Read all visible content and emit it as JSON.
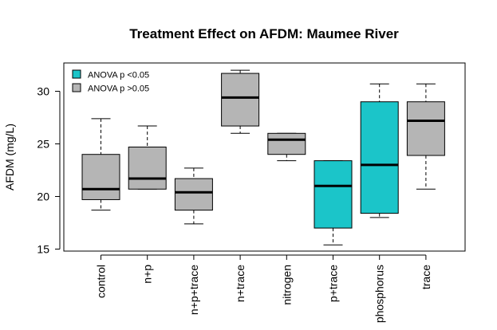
{
  "chart_data": {
    "type": "boxplot",
    "title": "Treatment Effect on AFDM: Maumee River",
    "xlabel": "",
    "ylabel": "AFDM (mg/L)",
    "ylim": [
      15,
      32
    ],
    "yticks": [
      "15",
      "20",
      "25",
      "30"
    ],
    "grid": false,
    "legend_position": "top-left",
    "legend": [
      {
        "label": "ANOVA p <0.05",
        "color": "#1bc5c9"
      },
      {
        "label": "ANOVA p >0.05",
        "color": "#b5b5b5"
      }
    ],
    "categories": [
      "control",
      "n+p",
      "n+p+trace",
      "n+trace",
      "nitrogen",
      "p+trace",
      "phosphorus",
      "trace"
    ],
    "boxes": [
      {
        "category": "control",
        "whisker_low": 18.7,
        "q1": 19.7,
        "median": 20.7,
        "q3": 24.0,
        "whisker_high": 27.4,
        "significant": false
      },
      {
        "category": "n+p",
        "whisker_low": 20.7,
        "q1": 20.7,
        "median": 21.7,
        "q3": 24.7,
        "whisker_high": 26.7,
        "significant": false
      },
      {
        "category": "n+p+trace",
        "whisker_low": 17.4,
        "q1": 18.7,
        "median": 20.4,
        "q3": 21.7,
        "whisker_high": 22.7,
        "significant": false
      },
      {
        "category": "n+trace",
        "whisker_low": 26.0,
        "q1": 26.7,
        "median": 29.4,
        "q3": 31.7,
        "whisker_high": 32.0,
        "significant": false
      },
      {
        "category": "nitrogen",
        "whisker_low": 23.4,
        "q1": 24.0,
        "median": 25.4,
        "q3": 26.0,
        "whisker_high": 26.0,
        "significant": false
      },
      {
        "category": "p+trace",
        "whisker_low": 15.4,
        "q1": 17.0,
        "median": 21.0,
        "q3": 23.4,
        "whisker_high": 23.4,
        "significant": true
      },
      {
        "category": "phosphorus",
        "whisker_low": 18.0,
        "q1": 18.4,
        "median": 23.0,
        "q3": 29.0,
        "whisker_high": 30.7,
        "significant": true
      },
      {
        "category": "trace",
        "whisker_low": 20.7,
        "q1": 23.9,
        "median": 27.2,
        "q3": 29.0,
        "whisker_high": 30.7,
        "significant": false
      }
    ]
  }
}
